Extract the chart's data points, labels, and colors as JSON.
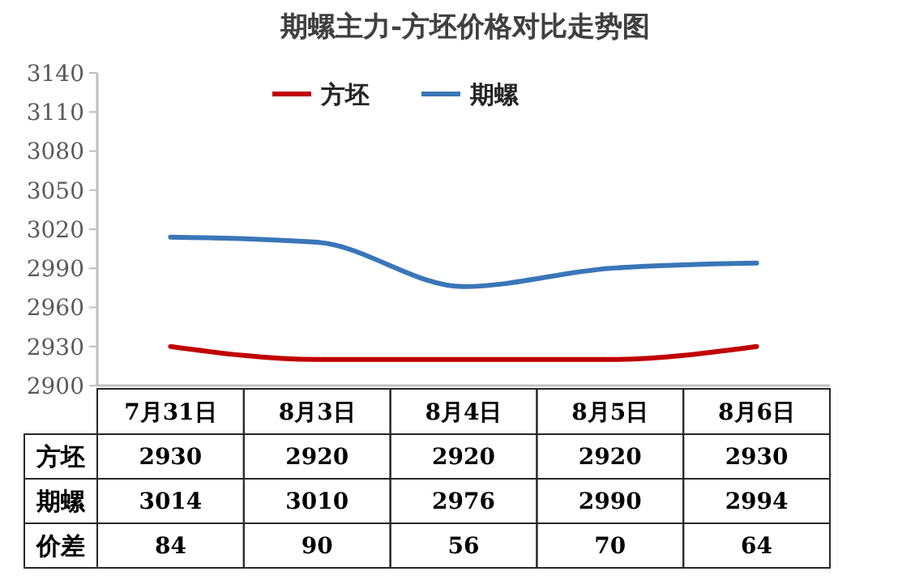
{
  "chart_data": {
    "type": "line",
    "title": "期螺主力-方坯价格对比走势图",
    "categories": [
      "7月31日",
      "8月3日",
      "8月4日",
      "8月5日",
      "8月6日"
    ],
    "series": [
      {
        "name": "方坯",
        "color": "#c00000",
        "values": [
          2930,
          2920,
          2920,
          2920,
          2930
        ]
      },
      {
        "name": "期螺",
        "color": "#3a76b8",
        "values": [
          3014,
          3010,
          2976,
          2990,
          2994
        ]
      }
    ],
    "annotations": [
      "价差",
      "84",
      "90",
      "56",
      "70",
      "64"
    ],
    "ylim": [
      2900,
      3140
    ],
    "yticks": [
      2900,
      2930,
      2960,
      2990,
      3020,
      3050,
      3080,
      3110,
      3140
    ],
    "grid": false,
    "legend": "top",
    "data_labels": true,
    "marker": "none"
  }
}
